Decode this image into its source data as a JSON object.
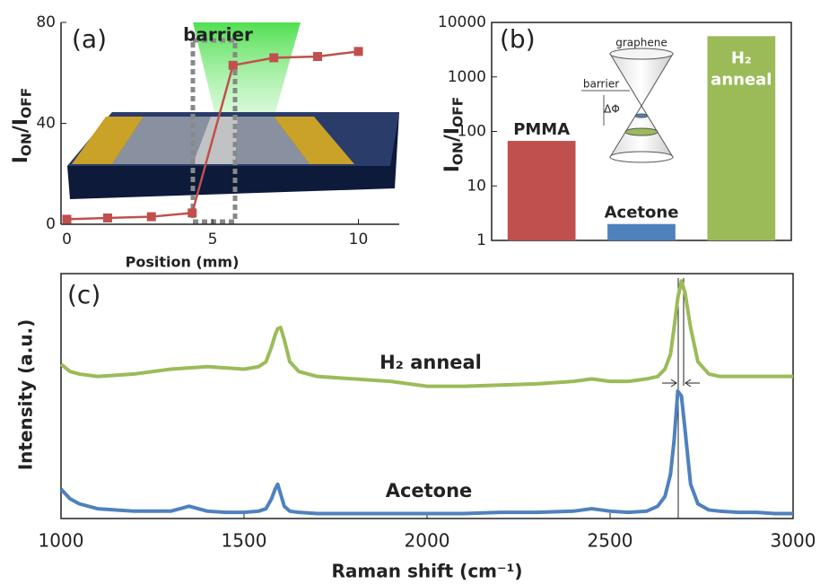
{
  "chart_data": [
    {
      "type": "line",
      "panel_label": "(a)",
      "annotation": "barrier",
      "xlabel": "Position (mm)",
      "ylabel": [
        "I",
        "ON",
        "/I",
        "OFF"
      ],
      "x": [
        0,
        1.4,
        2.9,
        4.3,
        5.7,
        7.1,
        8.6,
        10
      ],
      "values": [
        2,
        2.5,
        3,
        4.5,
        63,
        66,
        66.5,
        68.5
      ],
      "color": "#c0504d",
      "xlim": [
        -0.2,
        11.4
      ],
      "ylim": [
        0,
        80
      ],
      "xticks": [
        0,
        5,
        10
      ],
      "yticks": [
        0,
        40,
        80
      ]
    },
    {
      "type": "bar",
      "panel_label": "(b)",
      "ylabel": [
        "I",
        "ON",
        "/I",
        "OFF"
      ],
      "categories": [
        "PMMA",
        "Acetone",
        "H₂ anneal"
      ],
      "values": [
        67,
        2,
        5600
      ],
      "colors": [
        "#c0504d",
        "#4f81bd",
        "#9bbb59"
      ],
      "log_scale": true,
      "ylim": [
        1,
        10000
      ],
      "yticks": [
        1,
        10,
        100,
        1000,
        10000
      ],
      "inset_labels": [
        "graphene",
        "barrier",
        "ΔΦ"
      ]
    },
    {
      "type": "line",
      "panel_label": "(c)",
      "xlabel": "Raman shift (cm⁻¹)",
      "ylabel": "Intensity (a.u.)",
      "x": [
        1000,
        1025,
        1050,
        1100,
        1150,
        1200,
        1250,
        1300,
        1350,
        1400,
        1450,
        1500,
        1540,
        1560,
        1575,
        1585,
        1592,
        1600,
        1610,
        1625,
        1650,
        1700,
        1800,
        1900,
        2000,
        2100,
        2200,
        2300,
        2400,
        2450,
        2500,
        2550,
        2600,
        2630,
        2650,
        2665,
        2675,
        2685,
        2695,
        2705,
        2720,
        2740,
        2770,
        2800,
        2850,
        2900,
        2950,
        3000
      ],
      "series": [
        {
          "name": "H₂ anneal",
          "color": "#9bbb59",
          "values": [
            63,
            60,
            59,
            58,
            58.5,
            59,
            60,
            61,
            61.5,
            62,
            61.5,
            61,
            62,
            64,
            70,
            75,
            77.5,
            78,
            73,
            64,
            60,
            58,
            57,
            56,
            54,
            54,
            54.5,
            55,
            56,
            57,
            56,
            56,
            57,
            58,
            61,
            67,
            78,
            90,
            97,
            92,
            78,
            64,
            59,
            58,
            58,
            58,
            58,
            58
          ]
        },
        {
          "name": "Acetone",
          "color": "#4f81bd",
          "values": [
            12,
            8,
            6,
            4,
            3.5,
            3,
            3,
            3,
            5,
            3,
            2.5,
            2.5,
            3,
            4,
            8,
            12,
            14,
            10,
            5,
            3,
            2.5,
            2,
            2,
            2,
            2,
            2,
            2.5,
            2.5,
            3,
            4,
            3,
            2.5,
            3,
            5,
            9,
            18,
            32,
            52,
            50,
            36,
            14,
            6,
            3.5,
            3,
            2.5,
            2.5,
            2,
            2
          ]
        }
      ],
      "xlim": [
        1000,
        3000
      ],
      "ylim": [
        0,
        100
      ],
      "xticks": [
        1000,
        1500,
        2000,
        2500,
        3000
      ]
    }
  ]
}
